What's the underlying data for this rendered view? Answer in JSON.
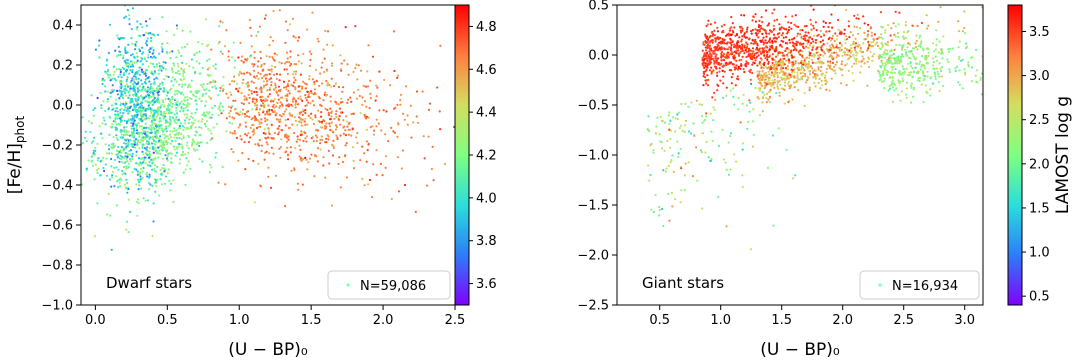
{
  "chart_data": [
    {
      "type": "scatter",
      "xlabel": "(U − BP)₀",
      "ylabel": "[Fe/H]phot",
      "xlim": [
        -0.1,
        2.5
      ],
      "ylim": [
        -1.0,
        0.5
      ],
      "x_ticks": [
        "0.0",
        "0.5",
        "1.0",
        "1.5",
        "2.0",
        "2.5"
      ],
      "y_ticks": [
        "−1.0",
        "−0.8",
        "−0.6",
        "−0.4",
        "−0.2",
        "0.0",
        "0.2",
        "0.4"
      ],
      "annotation": "Dwarf stars",
      "legend": "N=59,086",
      "legend_position": "lower-right",
      "colorbar": {
        "label": "",
        "range": [
          3.5,
          4.9
        ],
        "ticks": [
          "3.6",
          "3.8",
          "4.0",
          "4.2",
          "4.4",
          "4.6",
          "4.8"
        ],
        "colormap": "rainbow"
      },
      "point_count": 59086,
      "clusters": [
        {
          "x_center": 0.3,
          "y_center": 0.0,
          "note": "blue-cyan, low log g"
        },
        {
          "x_center": 0.5,
          "y_center": -0.1,
          "note": "green, log g ~4.2"
        },
        {
          "x_center": 1.4,
          "y_center": -0.05,
          "note": "orange-red, log g ~4.6-4.8"
        }
      ]
    },
    {
      "type": "scatter",
      "xlabel": "(U − BP)₀",
      "ylabel": "",
      "xlim": [
        0.15,
        3.15
      ],
      "ylim": [
        -2.5,
        0.5
      ],
      "x_ticks": [
        "0.5",
        "1.0",
        "1.5",
        "2.0",
        "2.5",
        "3.0"
      ],
      "y_ticks": [
        "−2.5",
        "−2.0",
        "−1.5",
        "−1.0",
        "−0.5",
        "0.0",
        "0.5"
      ],
      "annotation": "Giant stars",
      "legend": "N=16,934",
      "legend_position": "lower-right",
      "colorbar": {
        "label": "LAMOST log g",
        "range": [
          0.4,
          3.8
        ],
        "ticks": [
          "0.5",
          "1.0",
          "1.5",
          "2.0",
          "2.5",
          "3.0",
          "3.5"
        ],
        "colormap": "rainbow"
      },
      "point_count": 16934,
      "clusters": [
        {
          "x_center": 1.3,
          "y_center": 0.0,
          "note": "red, log g ~3.5"
        },
        {
          "x_center": 1.8,
          "y_center": -0.2,
          "note": "yellow-orange, log g ~3.0"
        },
        {
          "x_center": 2.7,
          "y_center": -0.15,
          "note": "cyan-green, log g ~2.2"
        }
      ]
    }
  ]
}
